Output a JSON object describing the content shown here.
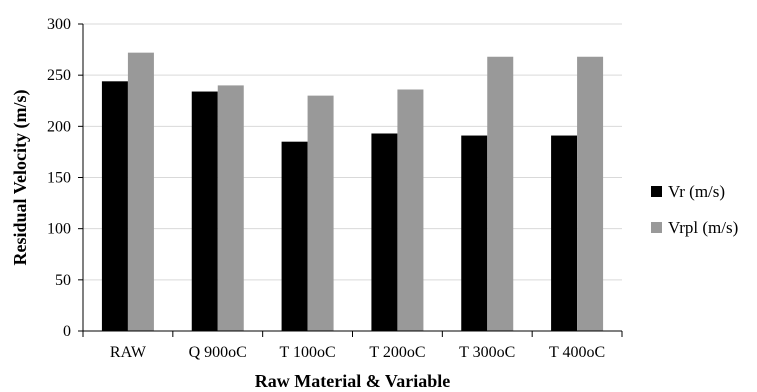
{
  "chart_data": {
    "type": "bar",
    "title": "",
    "xlabel": "Raw Material & Variable",
    "ylabel": "Residual Velocity (m/s)",
    "categories": [
      "RAW",
      "Q 900oC",
      "T 100oC",
      "T 200oC",
      "T 300oC",
      "T 400oC"
    ],
    "series": [
      {
        "name": "Vr (m/s)",
        "color": "#000000",
        "values": [
          244,
          234,
          185,
          193,
          191,
          191
        ]
      },
      {
        "name": "Vrpl (m/s)",
        "color": "#999999",
        "values": [
          272,
          240,
          230,
          236,
          268,
          268
        ]
      }
    ],
    "ylim": [
      0,
      300
    ],
    "yticks": [
      0,
      50,
      100,
      150,
      200,
      250,
      300
    ],
    "grid": true,
    "legend_position": "right"
  }
}
